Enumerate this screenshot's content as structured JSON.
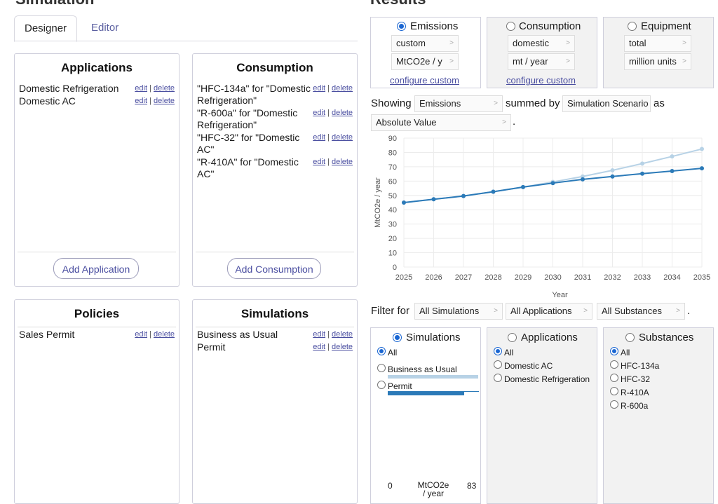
{
  "left_title": "Simulation",
  "right_title": "Results",
  "tabs": [
    {
      "label": "Designer",
      "active": true
    },
    {
      "label": "Editor",
      "active": false
    }
  ],
  "action_labels": {
    "edit": "edit",
    "sep": "|",
    "delete": "delete"
  },
  "applications": {
    "title": "Applications",
    "items": [
      "Domestic Refrigeration",
      "Domestic AC"
    ],
    "add_label": "Add Application"
  },
  "consumption": {
    "title": "Consumption",
    "items": [
      "\"HFC-134a\" for \"Domestic Refrigeration\"",
      "\"R-600a\" for \"Domestic Refrigeration\"",
      "\"HFC-32\" for \"Domestic AC\"",
      "\"R-410A\" for \"Domestic AC\""
    ],
    "add_label": "Add Consumption"
  },
  "policies": {
    "title": "Policies",
    "items": [
      "Sales Permit"
    ]
  },
  "simulations": {
    "title": "Simulations",
    "items": [
      "Business as Usual",
      "Permit"
    ]
  },
  "metrics": [
    {
      "label": "Emissions",
      "selected": true,
      "select1": "custom",
      "select2": "MtCO2e / y",
      "link": "configure custom"
    },
    {
      "label": "Consumption",
      "selected": false,
      "select1": "domestic",
      "select2": "mt / year",
      "link": "configure custom"
    },
    {
      "label": "Equipment",
      "selected": false,
      "select1": "total",
      "select2": "million units",
      "link": ""
    }
  ],
  "showing": {
    "prefix": "Showing",
    "metric": "Emissions",
    "middle": "summed by",
    "group": "Simulation Scenario",
    "suffix": "as",
    "mode": "Absolute Value",
    "end": "."
  },
  "filter": {
    "prefix": "Filter for",
    "sims": "All Simulations",
    "apps": "All Applications",
    "subs": "All Substances",
    "end": "."
  },
  "filter_boxes": {
    "simulations": {
      "title": "Simulations",
      "options": [
        "All",
        "Business as Usual",
        "Permit"
      ],
      "selected": "All"
    },
    "applications": {
      "title": "Applications",
      "options": [
        "All",
        "Domestic AC",
        "Domestic Refrigeration"
      ],
      "selected": "All"
    },
    "substances": {
      "title": "Substances",
      "options": [
        "All",
        "HFC-134a",
        "HFC-32",
        "R-410A",
        "R-600a"
      ],
      "selected": "All"
    }
  },
  "bar_share": {
    "Business as Usual": 0.99,
    "Permit": 0.84
  },
  "scale_footer": {
    "min": "0",
    "unit": "MtCO2e / year",
    "max": "83"
  },
  "colors": {
    "accent": "#1a66d2",
    "series_bau": "#b7d2e6",
    "series_permit": "#2b7ab8"
  },
  "chart_data": {
    "type": "line",
    "xlabel": "Year",
    "ylabel": "MtCO2e / year",
    "x": [
      2025,
      2026,
      2027,
      2028,
      2029,
      2030,
      2031,
      2032,
      2033,
      2034,
      2035
    ],
    "ylim": [
      0,
      90
    ],
    "yticks": [
      0,
      10,
      20,
      30,
      40,
      50,
      60,
      70,
      80,
      90
    ],
    "grid": true,
    "series": [
      {
        "name": "Business as Usual",
        "color": "#b7d2e6",
        "values": [
          45,
          47.3,
          49.6,
          52.6,
          55.8,
          59.4,
          63.2,
          67.5,
          72.2,
          77.2,
          82.4
        ]
      },
      {
        "name": "Permit",
        "color": "#2b7ab8",
        "values": [
          45,
          47.3,
          49.6,
          52.6,
          55.8,
          58.6,
          61.2,
          63.2,
          65.2,
          67.0,
          68.9
        ]
      }
    ]
  }
}
